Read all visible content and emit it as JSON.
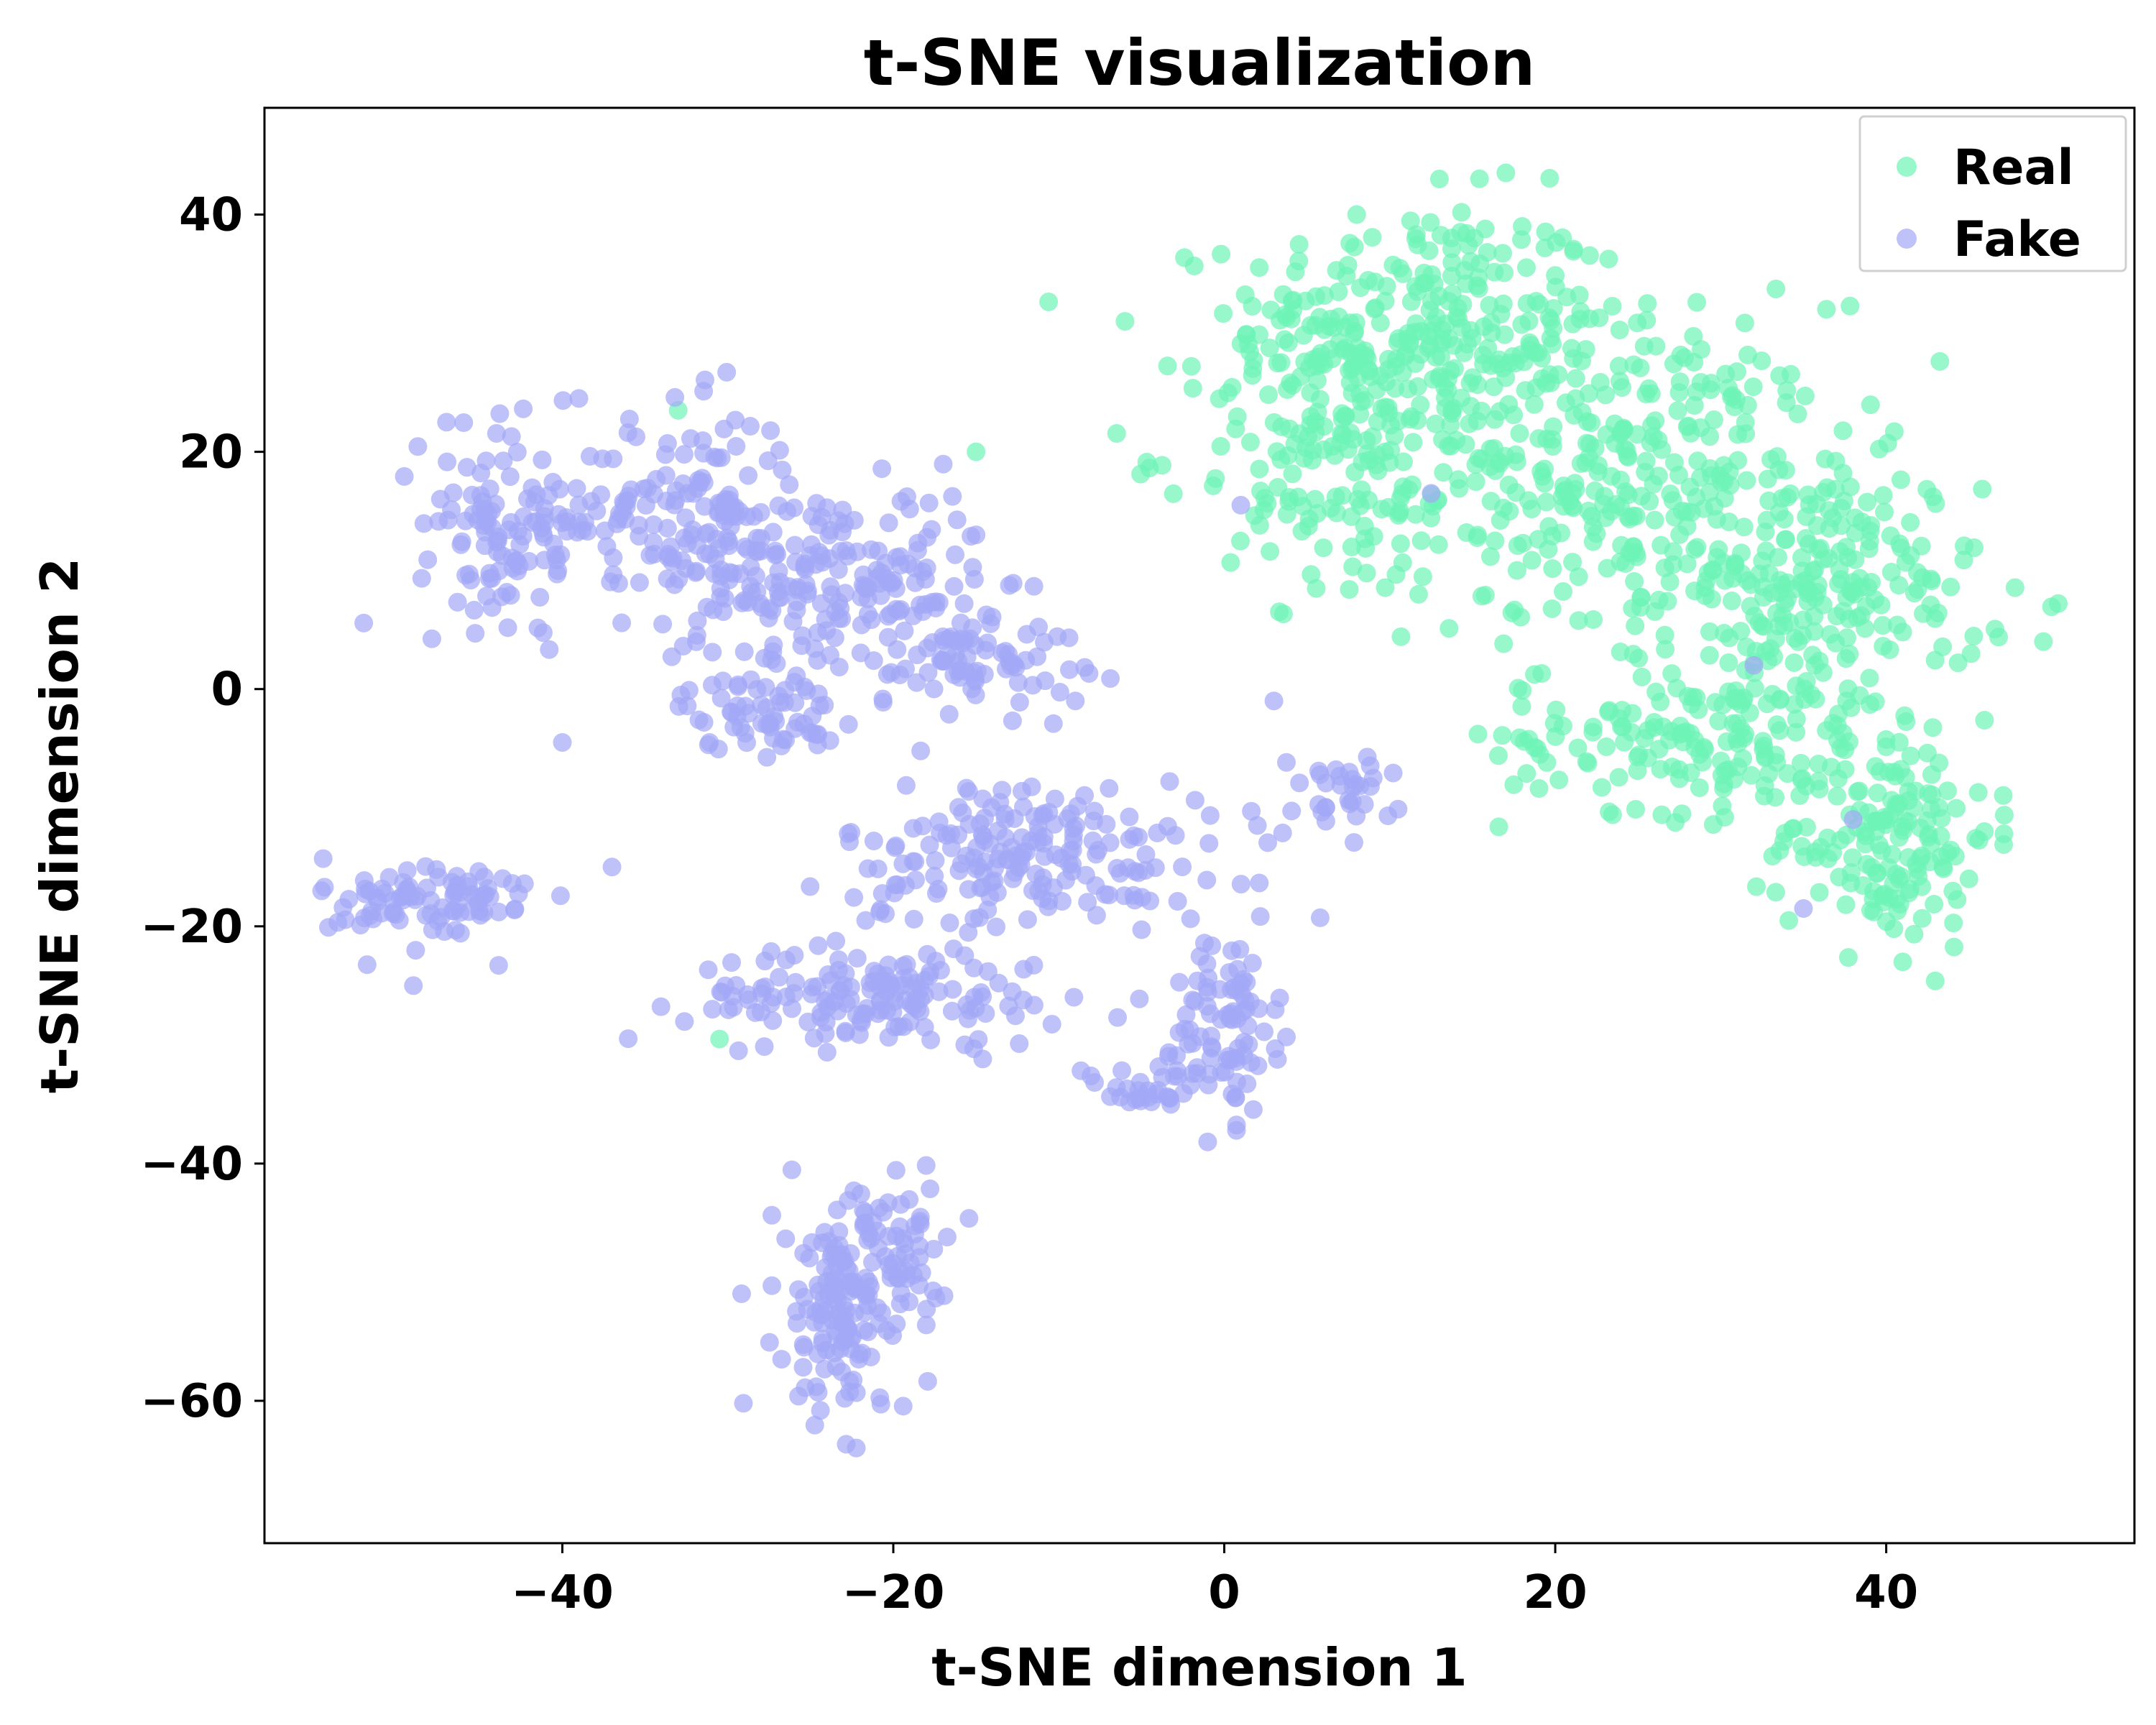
{
  "chart_data": {
    "type": "scatter",
    "title": "t-SNE visualization",
    "xlabel": "t-SNE dimension 1",
    "ylabel": "t-SNE dimension 2",
    "xlim": [
      -58,
      55
    ],
    "ylim": [
      -72,
      49
    ],
    "xticks": [
      -40,
      -20,
      0,
      20,
      40
    ],
    "yticks": [
      40,
      20,
      0,
      -20,
      -40,
      -60
    ],
    "xtick_labels": [
      "−40",
      "−20",
      "0",
      "20",
      "40"
    ],
    "ytick_labels": [
      "40",
      "20",
      "0",
      "−20",
      "−40",
      "−60"
    ],
    "grid": false,
    "legend_position": "top-right",
    "series": [
      {
        "name": "Real",
        "color": "#6ef3b6",
        "clusters": [
          {
            "cx": 12,
            "cy": 30,
            "sx": 7,
            "sy": 7,
            "n": 260
          },
          {
            "cx": 24,
            "cy": 18,
            "sx": 8,
            "sy": 9,
            "n": 320
          },
          {
            "cx": 36,
            "cy": 8,
            "sx": 6,
            "sy": 7,
            "n": 220
          },
          {
            "cx": 40,
            "cy": -12,
            "sx": 4,
            "sy": 6,
            "n": 160
          },
          {
            "cx": 6,
            "cy": 20,
            "sx": 5,
            "sy": 8,
            "n": 150
          },
          {
            "cx": 28,
            "cy": -4,
            "sx": 7,
            "sy": 4,
            "n": 140
          }
        ],
        "points": [
          [
            -33,
            23.5
          ],
          [
            -30.5,
            -29.5
          ],
          [
            -15,
            20
          ],
          [
            -6,
            31
          ],
          [
            49.5,
            4
          ],
          [
            13,
            43
          ],
          [
            8,
            40
          ],
          [
            18,
            39
          ],
          [
            45,
            -16
          ],
          [
            41,
            -23
          ]
        ]
      },
      {
        "name": "Fake",
        "color": "#a3a8f6",
        "clusters": [
          {
            "cx": -43,
            "cy": 14,
            "sx": 3.5,
            "sy": 5,
            "n": 120
          },
          {
            "cx": -32,
            "cy": 14,
            "sx": 4,
            "sy": 6,
            "n": 150
          },
          {
            "cx": -23,
            "cy": 9,
            "sx": 5,
            "sy": 5,
            "n": 160
          },
          {
            "cx": -15,
            "cy": 3,
            "sx": 4,
            "sy": 3,
            "n": 80
          },
          {
            "cx": -28,
            "cy": -2,
            "sx": 3,
            "sy": 2,
            "n": 60
          },
          {
            "cx": -48,
            "cy": -18,
            "sx": 4,
            "sy": 2.5,
            "n": 90
          },
          {
            "cx": -12,
            "cy": -14,
            "sx": 7,
            "sy": 4,
            "n": 190
          },
          {
            "cx": -21,
            "cy": -26,
            "sx": 7,
            "sy": 2.5,
            "n": 150
          },
          {
            "cx": 0,
            "cy": -28,
            "sx": 2,
            "sy": 5,
            "n": 90
          },
          {
            "cx": -5,
            "cy": -34,
            "sx": 3,
            "sy": 1.5,
            "n": 30
          },
          {
            "cx": -23,
            "cy": -52,
            "sx": 2.5,
            "sy": 6,
            "n": 150
          },
          {
            "cx": -19,
            "cy": -47,
            "sx": 2,
            "sy": 4,
            "n": 40
          },
          {
            "cx": 7,
            "cy": -9,
            "sx": 2,
            "sy": 2,
            "n": 30
          }
        ],
        "points": [
          [
            -40,
            -4.5
          ],
          [
            -37,
            -15
          ],
          [
            -49,
            -25
          ],
          [
            3,
            -1
          ],
          [
            9,
            -7.5
          ],
          [
            2,
            -11.5
          ],
          [
            -9,
            -1
          ],
          [
            -15,
            13
          ],
          [
            1,
            15.5
          ],
          [
            12.5,
            16.5
          ],
          [
            32,
            2
          ],
          [
            35,
            -18.5
          ],
          [
            38,
            -11
          ],
          [
            -47,
            22.5
          ],
          [
            -39,
            24.5
          ]
        ]
      }
    ]
  }
}
